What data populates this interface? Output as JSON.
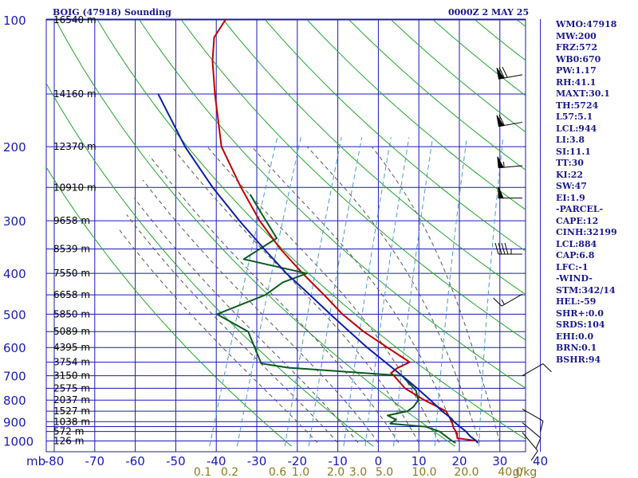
{
  "header": {
    "title": "BOIG (47918) Sounding",
    "time": "0000Z  2 MAY 25"
  },
  "stats": [
    "WMO:47918",
    "MW:200",
    "FRZ:572",
    "WB0:670",
    "PW:1.17",
    "RH:41.1",
    "MAXT:30.1",
    "TH:5724",
    "L57:5.1",
    "LCL:944",
    "LI:3.8",
    "SI:11.1",
    "TT:30",
    "KI:22",
    "SW:47",
    "EI:1.9",
    "-PARCEL-",
    "CAPE:12",
    "CINH:32199",
    "LCL:884",
    "CAP:6.8",
    "LFC:-1",
    "-WIND-",
    "STM:342/14",
    "HEL:-59",
    "SHR+:0.0",
    "SRDS:104",
    "EHI:0.0",
    "BRN:0.1",
    "BSHR:94"
  ],
  "colors": {
    "temperature": "#c00000",
    "dewpoint": "#0d5a1c",
    "parcel": "#0d1ea8",
    "isotherm": "#1a1ab4",
    "dry_adiabat": "#22a52a",
    "moist_adiabat": "#555555",
    "mixing_ratio": "#4a9ad8",
    "axis_label": "#1a1ab4",
    "mixing_label": "#8a7a20"
  },
  "chart_data": {
    "type": "line",
    "title": "BOIG (47918) Sounding",
    "x_label": "",
    "y_label": "mb",
    "temperature_ticks": [
      -80,
      -70,
      -60,
      -50,
      -40,
      -30,
      -20,
      -10,
      0,
      10,
      20,
      30,
      40
    ],
    "pressure_ticks": [
      100,
      200,
      300,
      400,
      500,
      600,
      700,
      800,
      900,
      1000
    ],
    "pressure_levels": [
      100,
      150,
      200,
      250,
      300,
      350,
      400,
      450,
      500,
      550,
      600,
      650,
      700,
      750,
      800,
      850,
      900,
      925,
      950,
      1000
    ],
    "height_labels": [
      {
        "p": 100,
        "label": "16540 m"
      },
      {
        "p": 150,
        "label": "14160 m"
      },
      {
        "p": 200,
        "label": "12370 m"
      },
      {
        "p": 250,
        "label": "10910 m"
      },
      {
        "p": 300,
        "label": "9658 m"
      },
      {
        "p": 350,
        "label": "8539 m"
      },
      {
        "p": 400,
        "label": "7550 m"
      },
      {
        "p": 450,
        "label": "6658 m"
      },
      {
        "p": 500,
        "label": "5850 m"
      },
      {
        "p": 550,
        "label": "5089 m"
      },
      {
        "p": 600,
        "label": "4395 m"
      },
      {
        "p": 650,
        "label": "3754 m"
      },
      {
        "p": 700,
        "label": "3150 m"
      },
      {
        "p": 750,
        "label": "2575 m"
      },
      {
        "p": 800,
        "label": "2037 m"
      },
      {
        "p": 850,
        "label": "1527 m"
      },
      {
        "p": 900,
        "label": "1038 m"
      },
      {
        "p": 950,
        "label": "572 m"
      },
      {
        "p": 1000,
        "label": "126 m"
      }
    ],
    "mixing_ratio_labels": [
      "0.1",
      "0.2",
      "0.6",
      "1.0",
      "2.0",
      "3.0",
      "5.0",
      "10.0",
      "20.0",
      "40.0"
    ],
    "mixing_ratio_unit": "g/kg",
    "series": [
      {
        "key": "temperature",
        "points": [
          [
            1010,
            24.5
          ],
          [
            1000,
            24
          ],
          [
            985,
            19
          ],
          [
            960,
            18.5
          ],
          [
            930,
            17
          ],
          [
            900,
            16
          ],
          [
            860,
            14
          ],
          [
            850,
            13.5
          ],
          [
            800,
            7
          ],
          [
            750,
            1
          ],
          [
            700,
            -3
          ],
          [
            690,
            -4
          ],
          [
            672,
            -3
          ],
          [
            650,
            -0.5
          ],
          [
            600,
            -7.5
          ],
          [
            550,
            -15
          ],
          [
            500,
            -22
          ],
          [
            450,
            -28.5
          ],
          [
            400,
            -36
          ],
          [
            350,
            -44
          ],
          [
            300,
            -52
          ],
          [
            250,
            -60
          ],
          [
            200,
            -69
          ],
          [
            150,
            -76
          ],
          [
            125,
            -80
          ],
          [
            110,
            -82
          ],
          [
            100,
            -81
          ]
        ]
      },
      {
        "key": "dewpoint",
        "points": [
          [
            1010,
            19
          ],
          [
            1000,
            18
          ],
          [
            975,
            16
          ],
          [
            950,
            14
          ],
          [
            925,
            10
          ],
          [
            910,
            1
          ],
          [
            890,
            2
          ],
          [
            870,
            -0.5
          ],
          [
            850,
            4
          ],
          [
            830,
            5
          ],
          [
            800,
            5.5
          ],
          [
            760,
            4
          ],
          [
            700,
            -1
          ],
          [
            670,
            -30
          ],
          [
            655,
            -37
          ],
          [
            550,
            -43.5
          ],
          [
            500,
            -53
          ],
          [
            450,
            -43
          ],
          [
            420,
            -40
          ],
          [
            400,
            -35
          ],
          [
            370,
            -52
          ],
          [
            330,
            -46
          ],
          [
            290,
            -52
          ],
          [
            260,
            -57
          ]
        ]
      },
      {
        "key": "parcel",
        "points": [
          [
            1010,
            24.5
          ],
          [
            1000,
            24
          ],
          [
            975,
            22
          ],
          [
            950,
            20.5
          ],
          [
            925,
            18.5
          ],
          [
            900,
            16.5
          ],
          [
            884,
            15.5
          ],
          [
            850,
            12.5
          ],
          [
            800,
            8.5
          ],
          [
            750,
            4
          ],
          [
            700,
            -1
          ],
          [
            650,
            -6.5
          ],
          [
            600,
            -12.5
          ],
          [
            550,
            -18.5
          ],
          [
            500,
            -25
          ],
          [
            450,
            -32
          ],
          [
            400,
            -40
          ],
          [
            350,
            -48
          ],
          [
            300,
            -57
          ],
          [
            250,
            -67
          ],
          [
            200,
            -78
          ],
          [
            150,
            -90
          ]
        ]
      }
    ],
    "wind_barbs": [
      {
        "p": 135,
        "dir": 260,
        "spd": 70
      },
      {
        "p": 175,
        "dir": 260,
        "spd": 60
      },
      {
        "p": 222,
        "dir": 265,
        "spd": 55
      },
      {
        "p": 265,
        "dir": 270,
        "spd": 50
      },
      {
        "p": 360,
        "dir": 270,
        "spd": 45
      },
      {
        "p": 448,
        "dir": 240,
        "spd": 15
      },
      {
        "p": 700,
        "dir": 60,
        "spd": 10
      },
      {
        "p": 840,
        "dir": 120,
        "spd": 10
      },
      {
        "p": 905,
        "dir": 130,
        "spd": 10
      },
      {
        "p": 955,
        "dir": 140,
        "spd": 10
      }
    ]
  }
}
